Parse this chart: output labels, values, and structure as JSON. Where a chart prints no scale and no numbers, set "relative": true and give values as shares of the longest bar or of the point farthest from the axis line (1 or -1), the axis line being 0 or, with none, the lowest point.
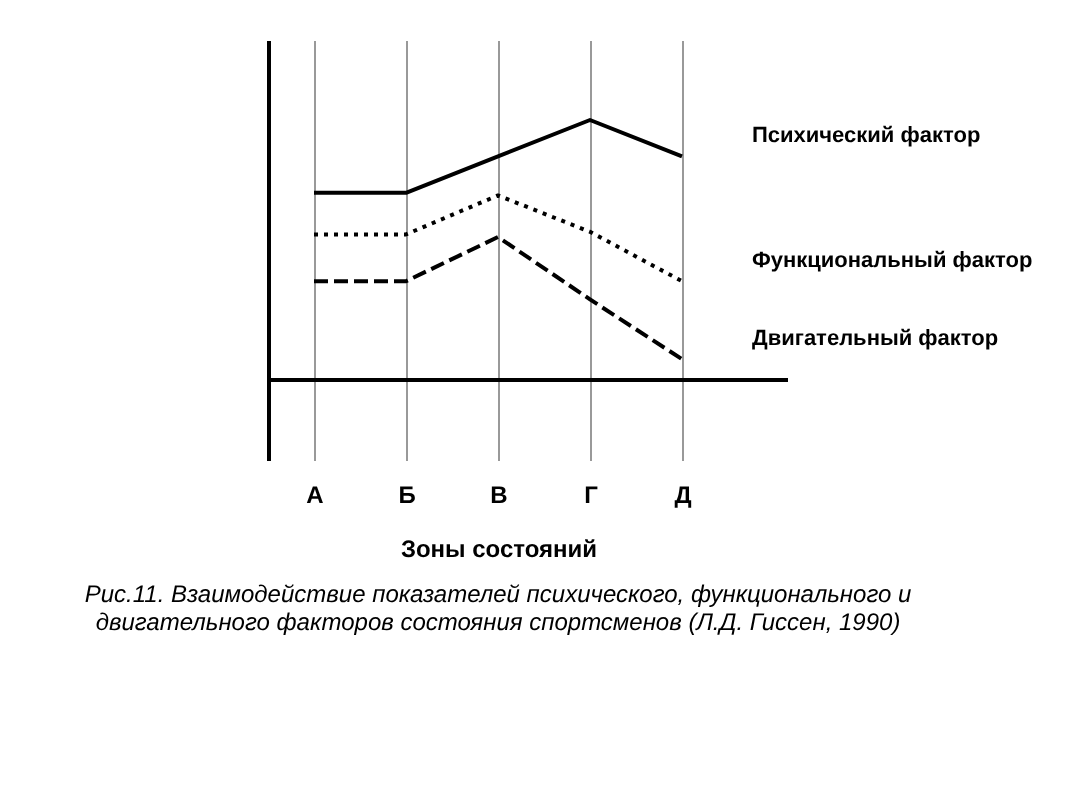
{
  "chart_data": {
    "type": "line",
    "relative": true,
    "xlabel": "Зоны состояний",
    "categories": [
      "А",
      "Б",
      "В",
      "Г",
      "Д"
    ],
    "grid": "x",
    "marker": "none",
    "legend": false,
    "series": [
      {
        "name": "Психический фактор",
        "color": "#000000",
        "line_style": "solid",
        "values": [
          0.72,
          0.72,
          0.86,
          1,
          0.86
        ]
      },
      {
        "name": "Функциональный фактор",
        "color": "#000000",
        "line_style": "dotted",
        "values": [
          0.56,
          0.56,
          0.71,
          0.57,
          0.38
        ]
      },
      {
        "name": "Двигательный фактор",
        "color": "#000000",
        "line_style": "dashed",
        "values": [
          0.38,
          0.38,
          0.55,
          0.31,
          0.08
        ]
      }
    ],
    "annotations": [
      "Рис.11.  Взаимодействие показателей психического, функционального и двигательного факторов состояния спортсменов (Л.Д. Гиссен,  1990)"
    ]
  }
}
